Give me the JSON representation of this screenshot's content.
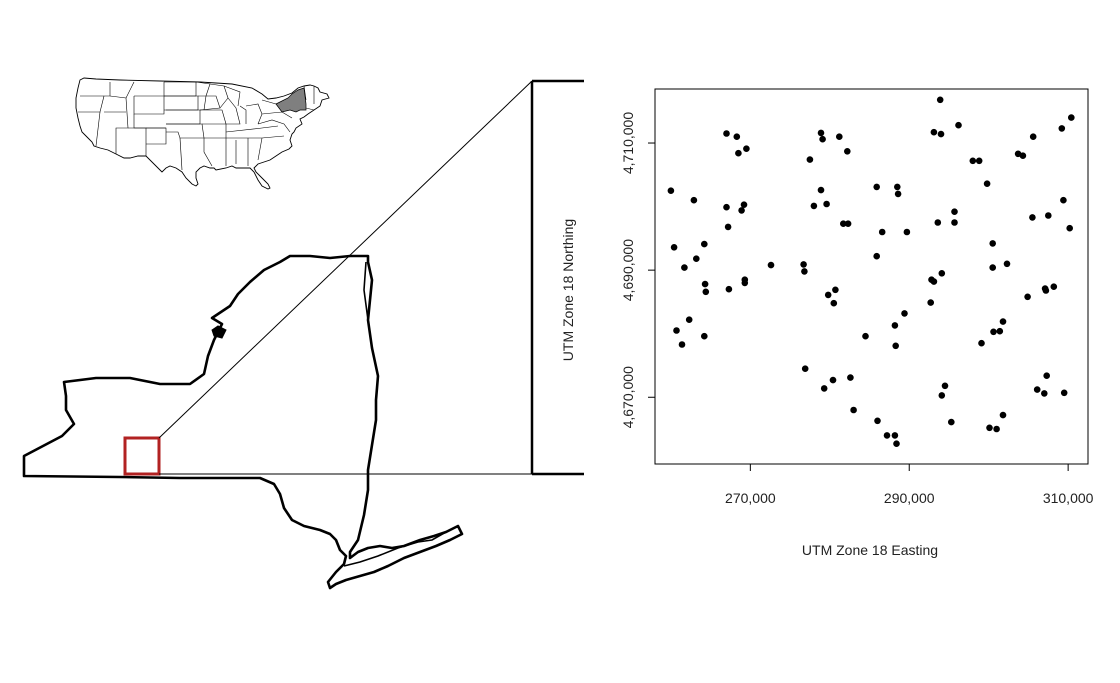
{
  "chart_data": {
    "type": "scatter",
    "title": "",
    "xlabel": "UTM Zone 18 Easting",
    "ylabel": "UTM Zone 18 Northing",
    "xlim": [
      258000,
      312500
    ],
    "ylim": [
      4659500,
      4718500
    ],
    "xticks": [
      270000,
      290000,
      310000
    ],
    "yticks": [
      4670000,
      4690000,
      4710000
    ],
    "xtick_labels": [
      "270,000",
      "290,000",
      "310,000"
    ],
    "ytick_labels": [
      "4,670,000",
      "4,690,000",
      "4,710,000"
    ],
    "grid": false,
    "points": [
      [
        260000,
        4702500
      ],
      [
        260400,
        4693600
      ],
      [
        260700,
        4680500
      ],
      [
        261400,
        4678300
      ],
      [
        261700,
        4690400
      ],
      [
        262300,
        4682200
      ],
      [
        262900,
        4701000
      ],
      [
        263200,
        4691800
      ],
      [
        264200,
        4694100
      ],
      [
        264300,
        4687800
      ],
      [
        264400,
        4686600
      ],
      [
        264200,
        4679600
      ],
      [
        267000,
        4711500
      ],
      [
        267000,
        4699900
      ],
      [
        267200,
        4696800
      ],
      [
        267300,
        4687000
      ],
      [
        268300,
        4711000
      ],
      [
        268500,
        4708400
      ],
      [
        268900,
        4699400
      ],
      [
        269200,
        4700300
      ],
      [
        269300,
        4688500
      ],
      [
        269300,
        4688000
      ],
      [
        269500,
        4709100
      ],
      [
        272600,
        4690800
      ],
      [
        276700,
        4690900
      ],
      [
        276800,
        4689800
      ],
      [
        276900,
        4674500
      ],
      [
        277500,
        4707400
      ],
      [
        278000,
        4700100
      ],
      [
        278900,
        4711600
      ],
      [
        279100,
        4710600
      ],
      [
        278900,
        4702600
      ],
      [
        279300,
        4671400
      ],
      [
        279600,
        4700400
      ],
      [
        279800,
        4686100
      ],
      [
        280400,
        4672700
      ],
      [
        280500,
        4684800
      ],
      [
        280700,
        4686900
      ],
      [
        281200,
        4711000
      ],
      [
        281700,
        4697300
      ],
      [
        282300,
        4697300
      ],
      [
        282200,
        4708700
      ],
      [
        282600,
        4673100
      ],
      [
        283000,
        4668000
      ],
      [
        284500,
        4679600
      ],
      [
        285900,
        4692200
      ],
      [
        285900,
        4703100
      ],
      [
        286000,
        4666300
      ],
      [
        286600,
        4696000
      ],
      [
        287200,
        4664000
      ],
      [
        288200,
        4664000
      ],
      [
        288200,
        4681300
      ],
      [
        288300,
        4678100
      ],
      [
        288400,
        4662700
      ],
      [
        288500,
        4703100
      ],
      [
        288600,
        4702000
      ],
      [
        289400,
        4683200
      ],
      [
        289700,
        4696000
      ],
      [
        292700,
        4684900
      ],
      [
        292800,
        4688500
      ],
      [
        293100,
        4688200
      ],
      [
        293100,
        4711700
      ],
      [
        293600,
        4697500
      ],
      [
        293900,
        4716800
      ],
      [
        294000,
        4711400
      ],
      [
        294100,
        4689500
      ],
      [
        294100,
        4670300
      ],
      [
        294500,
        4671800
      ],
      [
        295300,
        4666100
      ],
      [
        295700,
        4697500
      ],
      [
        295700,
        4699200
      ],
      [
        296200,
        4712800
      ],
      [
        298000,
        4707200
      ],
      [
        298800,
        4707200
      ],
      [
        299100,
        4678500
      ],
      [
        299800,
        4703600
      ],
      [
        300100,
        4665200
      ],
      [
        300500,
        4694200
      ],
      [
        300500,
        4690400
      ],
      [
        300600,
        4680300
      ],
      [
        301000,
        4665000
      ],
      [
        301400,
        4680400
      ],
      [
        301800,
        4667200
      ],
      [
        301800,
        4681900
      ],
      [
        302300,
        4691000
      ],
      [
        303700,
        4708300
      ],
      [
        304300,
        4708000
      ],
      [
        304900,
        4685800
      ],
      [
        305500,
        4698300
      ],
      [
        305600,
        4711000
      ],
      [
        306100,
        4671200
      ],
      [
        307100,
        4687100
      ],
      [
        307200,
        4686800
      ],
      [
        307000,
        4670600
      ],
      [
        307300,
        4673400
      ],
      [
        307500,
        4698600
      ],
      [
        308200,
        4687400
      ],
      [
        309200,
        4712300
      ],
      [
        309400,
        4701000
      ],
      [
        309500,
        4670700
      ],
      [
        310200,
        4696600
      ],
      [
        310400,
        4714000
      ]
    ]
  },
  "map": {
    "inset_label": "",
    "highlight_state_color": "#7f7f7f",
    "study_area_color": "#b22222"
  }
}
